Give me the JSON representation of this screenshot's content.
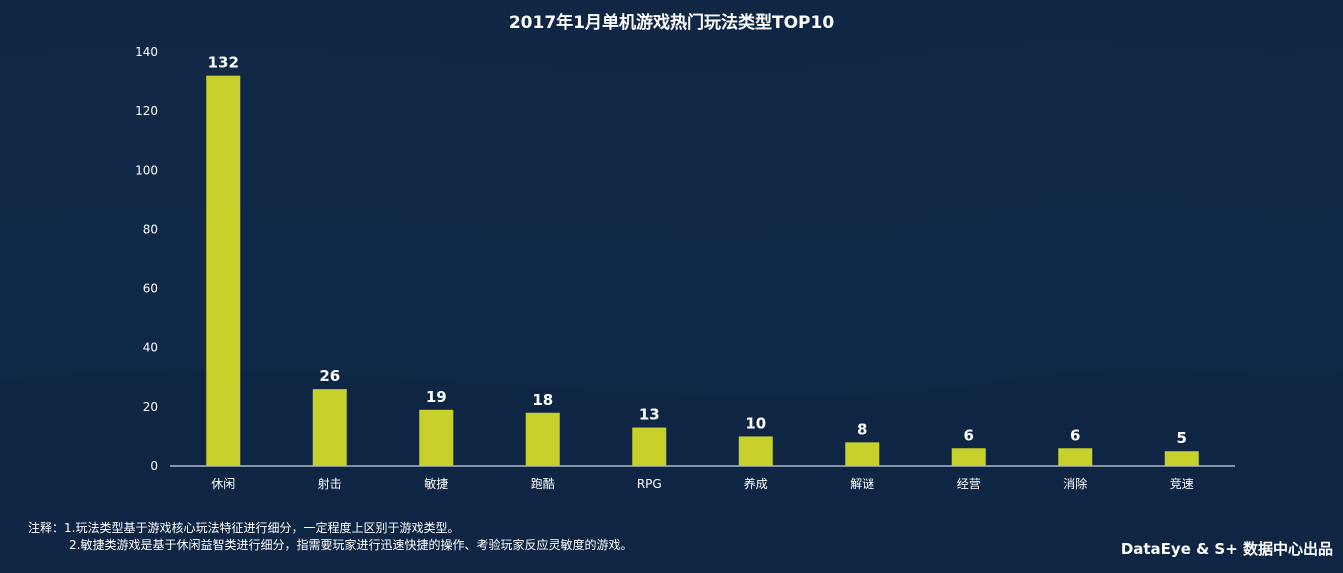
{
  "chart_data": {
    "type": "bar",
    "title": "2017年1月单机游戏热门玩法类型TOP10",
    "categories": [
      "休闲",
      "射击",
      "敏捷",
      "跑酷",
      "RPG",
      "养成",
      "解谜",
      "经营",
      "消除",
      "竞速"
    ],
    "values": [
      132,
      26,
      19,
      18,
      13,
      10,
      8,
      6,
      6,
      5
    ],
    "ylim": [
      0,
      140
    ],
    "yticks": [
      0,
      20,
      40,
      60,
      80,
      100,
      120,
      140
    ],
    "xlabel": "",
    "ylabel": "",
    "grid": false,
    "bar_color": "#c8d12b"
  },
  "notes": {
    "line1": "注释：1.玩法类型基于游戏核心玩法特征进行细分，一定程度上区别于游戏类型。",
    "line2": "2.敏捷类游戏是基于休闲益智类进行细分，指需要玩家进行迅速快捷的操作、考验玩家反应灵敏度的游戏。"
  },
  "credit": "DataEye & S+ 数据中心出品",
  "colors": {
    "background": "#0f2644",
    "bar": "#c8d12b",
    "text": "#ffffff"
  }
}
